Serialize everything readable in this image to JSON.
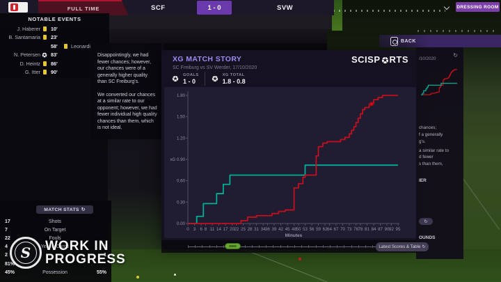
{
  "scoreboard": {
    "status": "FULL TIME",
    "home": "SCF",
    "score": "1 - 0",
    "away": "SVW"
  },
  "top_right": {
    "dressing_room": "DRESSING ROOM",
    "back": "BACK"
  },
  "notable_events": {
    "title": "NOTABLE EVENTS",
    "events": [
      {
        "side": "home",
        "player": "J. Haberer",
        "minute": "10'",
        "icon": "yellow-card"
      },
      {
        "side": "home",
        "player": "B. Santamaria",
        "minute": "23'",
        "icon": "yellow-card"
      },
      {
        "side": "away",
        "player": "Leonardi",
        "minute": "58'",
        "icon": "yellow-card"
      },
      {
        "side": "home",
        "player": "N. Petersen",
        "minute": "83'",
        "icon": "goal"
      },
      {
        "side": "home",
        "player": "D. Heintz",
        "minute": "86'",
        "icon": "yellow-card"
      },
      {
        "side": "home",
        "player": "G. Itter",
        "minute": "90'",
        "icon": "yellow-card"
      }
    ]
  },
  "analysis": {
    "para1": "Disappointingly, we had fewer chances; however, our chances were of a generally higher quality than SC Freiburg's.",
    "para2": "We converted our chances at a similar rate to our opponent; however, we had fewer individual high quality chances than them, which is not ideal."
  },
  "xg_panel": {
    "title": "XG MATCH STORY",
    "subtitle": "SC Freiburg vs SV Werder, 17/10/2020",
    "brand_prefix": "SCISP",
    "brand_suffix": "RTS",
    "goals_label": "GOALS",
    "goals_value": "1 - 0",
    "xg_label": "XG TOTAL",
    "xg_value": "1.8 - 0.8"
  },
  "chart_data": {
    "type": "line",
    "title": "XG MATCH STORY",
    "xlabel": "Minutes",
    "ylabel": "xG",
    "xlim": [
      0,
      95
    ],
    "ylim": [
      0,
      1.88
    ],
    "grid": false,
    "legend_position": "none",
    "x_ticks": [
      0,
      3,
      6,
      8,
      11,
      14,
      17,
      20,
      22,
      25,
      28,
      31,
      34,
      36,
      39,
      42,
      45,
      48,
      50,
      53,
      56,
      59,
      62,
      64,
      67,
      70,
      73,
      76,
      78,
      81,
      84,
      87,
      90,
      92,
      95
    ],
    "y_tick_values": [
      0,
      0.3,
      0.6,
      0.9,
      1.2,
      1.5,
      1.8
    ],
    "y_tick_labels": [
      "0.00",
      "0.30",
      "0.60",
      "xG 0.90",
      "1.20",
      "1.50",
      "1.80"
    ],
    "series": [
      {
        "name": "SV Werder",
        "color": "#00af97",
        "points": [
          [
            0,
            0
          ],
          [
            4,
            0
          ],
          [
            4,
            0.1
          ],
          [
            7,
            0.1
          ],
          [
            7,
            0.28
          ],
          [
            13,
            0.28
          ],
          [
            13,
            0.42
          ],
          [
            16,
            0.42
          ],
          [
            16,
            0.55
          ],
          [
            19,
            0.55
          ],
          [
            19,
            0.68
          ],
          [
            53,
            0.68
          ],
          [
            53,
            0.82
          ],
          [
            95,
            0.82
          ]
        ]
      },
      {
        "name": "SC Freiburg",
        "color": "#c3101c",
        "points": [
          [
            0,
            0
          ],
          [
            24,
            0
          ],
          [
            24,
            0.04
          ],
          [
            27,
            0.04
          ],
          [
            27,
            0.09
          ],
          [
            31,
            0.09
          ],
          [
            31,
            0.11
          ],
          [
            38,
            0.11
          ],
          [
            38,
            0.14
          ],
          [
            41,
            0.14
          ],
          [
            41,
            0.17
          ],
          [
            44,
            0.17
          ],
          [
            44,
            0.19
          ],
          [
            48,
            0.19
          ],
          [
            48,
            0.5
          ],
          [
            50,
            0.5
          ],
          [
            50,
            0.56
          ],
          [
            52,
            0.56
          ],
          [
            52,
            0.65
          ],
          [
            53,
            0.65
          ],
          [
            53,
            0.68
          ],
          [
            58,
            0.68
          ],
          [
            58,
            0.95
          ],
          [
            59,
            0.95
          ],
          [
            59,
            1.08
          ],
          [
            61,
            1.08
          ],
          [
            61,
            1.13
          ],
          [
            63,
            1.13
          ],
          [
            63,
            1.15
          ],
          [
            69,
            1.15
          ],
          [
            69,
            1.18
          ],
          [
            71,
            1.18
          ],
          [
            71,
            1.21
          ],
          [
            73,
            1.21
          ],
          [
            73,
            1.26
          ],
          [
            74,
            1.26
          ],
          [
            74,
            1.31
          ],
          [
            75,
            1.31
          ],
          [
            75,
            1.36
          ],
          [
            76,
            1.36
          ],
          [
            76,
            1.42
          ],
          [
            77,
            1.42
          ],
          [
            77,
            1.48
          ],
          [
            78,
            1.48
          ],
          [
            78,
            1.54
          ],
          [
            79,
            1.54
          ],
          [
            79,
            1.6
          ],
          [
            80,
            1.6
          ],
          [
            80,
            1.63
          ],
          [
            82,
            1.63
          ],
          [
            82,
            1.68
          ],
          [
            84,
            1.68
          ],
          [
            84,
            1.74
          ],
          [
            86,
            1.74
          ],
          [
            86,
            1.77
          ],
          [
            88,
            1.77
          ],
          [
            88,
            1.8
          ],
          [
            95,
            1.8
          ]
        ]
      }
    ],
    "goal_marker": {
      "series": "SC Freiburg",
      "minute": 83,
      "xg": 1.68
    }
  },
  "match_stats": {
    "title": "MATCH STATS",
    "rows": [
      {
        "home": "17",
        "label": "Shots",
        "away": ""
      },
      {
        "home": "7",
        "label": "On Target",
        "away": ""
      },
      {
        "home": "22",
        "label": "Fouls",
        "away": ""
      },
      {
        "home": "4",
        "label": "Yellow Cards",
        "away": "1"
      },
      {
        "home": "2",
        "label": "",
        "away": "1"
      },
      {
        "home": "81%",
        "label": "",
        "away": ""
      },
      {
        "home": "45%",
        "label": "Possession",
        "away": "55%"
      }
    ]
  },
  "sidebar": {
    "date_fragment": "/10/2020",
    "text_fragments": [
      "chances;",
      "f a generally",
      "g's.",
      "a similar rate to",
      "d fewer",
      "s than them,"
    ],
    "header_fragment": "IER",
    "grounds_fragment": "OUNDS",
    "scores_button": "Latest Scores & Table"
  },
  "watermark": {
    "line1": "WORK IN",
    "line2": "PROGRESS"
  },
  "colors": {
    "accent_purple": "#9c8bf0",
    "home_red": "#c3101c",
    "away_teal": "#00af97",
    "yellow_card": "#e6c52e",
    "timeline_handle": "#67a832",
    "dressing_room": "#7a3fa8"
  }
}
